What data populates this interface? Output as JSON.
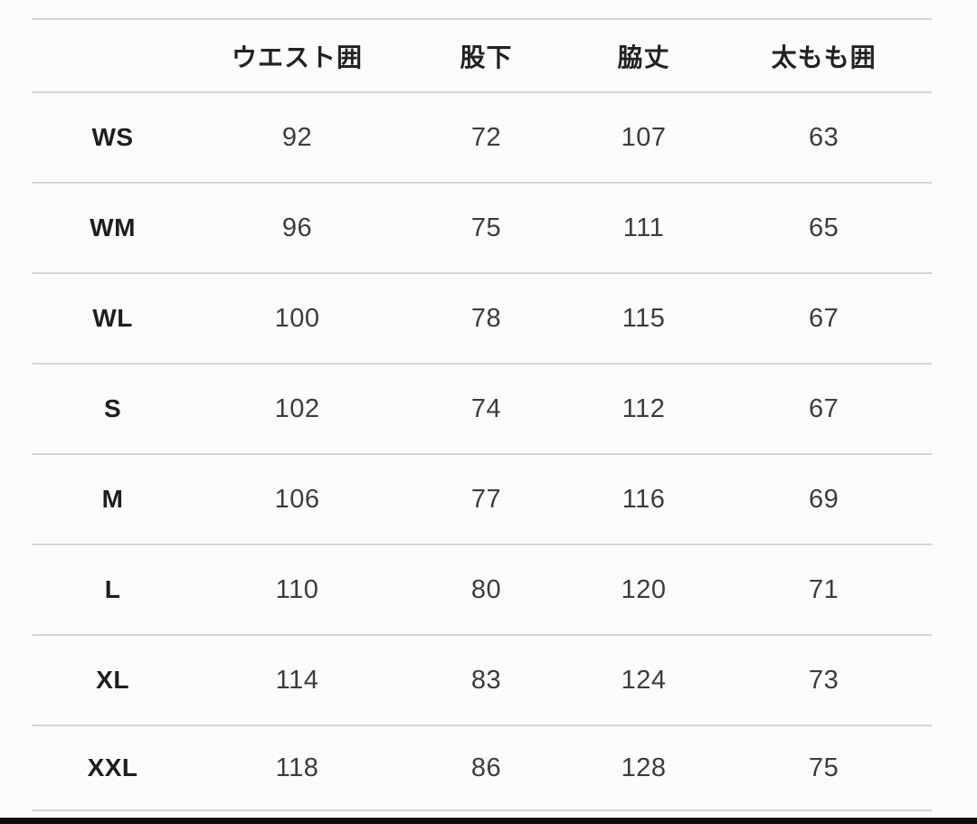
{
  "colors": {
    "page_background": "#fbfbfb",
    "divider": "#d5d5d5",
    "header_text": "#222222",
    "value_text": "#3c3c3c",
    "bottom_bar": "#0f0f0f"
  },
  "chart_data": {
    "type": "table",
    "columns": [
      "",
      "ウエスト囲",
      "股下",
      "脇丈",
      "太もも囲"
    ],
    "rows": [
      {
        "label": "WS",
        "values": [
          "92",
          "72",
          "107",
          "63"
        ]
      },
      {
        "label": "WM",
        "values": [
          "96",
          "75",
          "111",
          "65"
        ]
      },
      {
        "label": "WL",
        "values": [
          "100",
          "78",
          "115",
          "67"
        ]
      },
      {
        "label": "S",
        "values": [
          "102",
          "74",
          "112",
          "67"
        ]
      },
      {
        "label": "M",
        "values": [
          "106",
          "77",
          "116",
          "69"
        ]
      },
      {
        "label": "L",
        "values": [
          "110",
          "80",
          "120",
          "71"
        ]
      },
      {
        "label": "XL",
        "values": [
          "114",
          "83",
          "124",
          "73"
        ]
      },
      {
        "label": "XXL",
        "values": [
          "118",
          "86",
          "128",
          "75"
        ]
      }
    ],
    "layout": {
      "grid": "horizontal-dividers-only",
      "header_position": "top"
    }
  }
}
